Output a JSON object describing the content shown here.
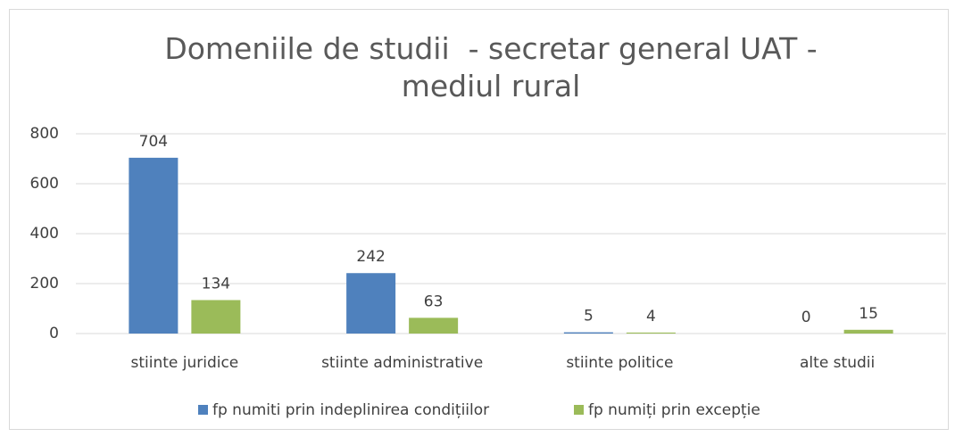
{
  "chart_data": {
    "type": "bar",
    "title": "Domeniile de studii  - secretar general UAT - mediul rural",
    "categories": [
      "stiinte juridice",
      "stiinte administrative",
      "stiinte politice",
      "alte studii"
    ],
    "series": [
      {
        "name": "fp numiti prin indeplinirea condițiilor",
        "color": "#4f81bd",
        "values": [
          704,
          242,
          5,
          0
        ]
      },
      {
        "name": "fp numiți prin excepție",
        "color": "#9bbb59",
        "values": [
          134,
          63,
          4,
          15
        ]
      }
    ],
    "ylim": [
      0,
      800
    ],
    "yticks": [
      0,
      200,
      400,
      600,
      800
    ],
    "grid": true,
    "legend": "bottom"
  }
}
